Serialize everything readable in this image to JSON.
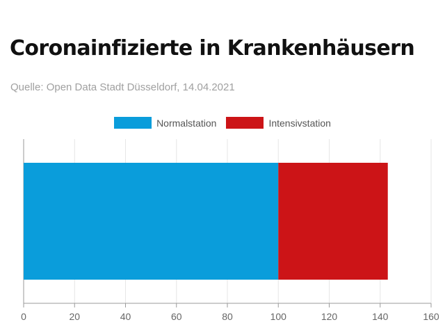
{
  "title": "Coronainfizierte in Krankenhäusern",
  "subtitle": "Quelle: Open Data Stadt Düsseldorf, 14.04.2021",
  "chart_data": {
    "type": "bar",
    "orientation": "horizontal",
    "stacked": true,
    "categories": [
      ""
    ],
    "series": [
      {
        "name": "Normalstation",
        "values": [
          100
        ],
        "color": "#0a9ddb"
      },
      {
        "name": "Intensivstation",
        "values": [
          43
        ],
        "color": "#cc1417"
      }
    ],
    "xlim": [
      0,
      160
    ],
    "xticks": [
      0,
      20,
      40,
      60,
      80,
      100,
      120,
      140,
      160
    ],
    "grid": true,
    "legend_position": "top-center"
  }
}
